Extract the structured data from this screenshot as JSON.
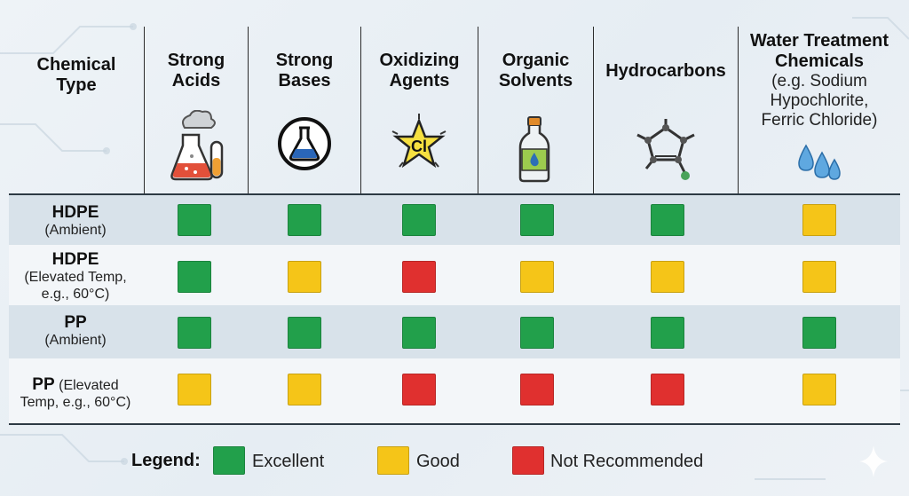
{
  "header": {
    "row_header": [
      "Chemical",
      "Type"
    ],
    "columns": [
      {
        "title": [
          "Strong",
          "Acids"
        ],
        "sub": [],
        "icon": "beakers-with-smoke-icon"
      },
      {
        "title": [
          "Strong",
          "Bases"
        ],
        "sub": [],
        "icon": "flask-in-circle-icon"
      },
      {
        "title": [
          "Oxidizing",
          "Agents"
        ],
        "sub": [],
        "icon": "cl-star-icon",
        "icon_text": "Cl"
      },
      {
        "title": [
          "Organic",
          "Solvents"
        ],
        "sub": [],
        "icon": "bottle-with-drop-icon"
      },
      {
        "title": [
          "Hydrocarbons"
        ],
        "sub": [],
        "icon": "molecule-ring-icon"
      },
      {
        "title": [
          "Water Treatment",
          "Chemicals"
        ],
        "sub": [
          "(e.g. Sodium",
          "Hypochlorite,",
          "Ferric Chloride)"
        ],
        "icon": "water-drops-icon"
      }
    ]
  },
  "rows": [
    {
      "main": "HDPE",
      "sub": [
        "(Ambient)"
      ],
      "ratings": [
        "excellent",
        "excellent",
        "excellent",
        "excellent",
        "excellent",
        "good"
      ]
    },
    {
      "main": "HDPE",
      "sub": [
        "(Elevated Temp,",
        "e.g., 60°C)"
      ],
      "ratings": [
        "excellent",
        "good",
        "not_recommended",
        "good",
        "good",
        "good"
      ]
    },
    {
      "main": "PP",
      "sub": [
        "(Ambient)"
      ],
      "ratings": [
        "excellent",
        "excellent",
        "excellent",
        "excellent",
        "excellent",
        "excellent"
      ]
    },
    {
      "main": "PP",
      "inline_sub": "(Elevated",
      "sub": [
        "Temp, e.g., 60°C)"
      ],
      "ratings": [
        "good",
        "good",
        "not_recommended",
        "not_recommended",
        "not_recommended",
        "good"
      ]
    }
  ],
  "legend": {
    "title": "Legend:",
    "items": [
      {
        "key": "excellent",
        "label": "Excellent"
      },
      {
        "key": "good",
        "label": "Good"
      },
      {
        "key": "not_recommended",
        "label": "Not Recommended"
      }
    ]
  },
  "colors": {
    "excellent": "#22a04b",
    "good": "#f5c518",
    "not_recommended": "#e0302f",
    "row_band_dark": "#d8e2ea",
    "row_band_light": "#f3f6f9"
  }
}
